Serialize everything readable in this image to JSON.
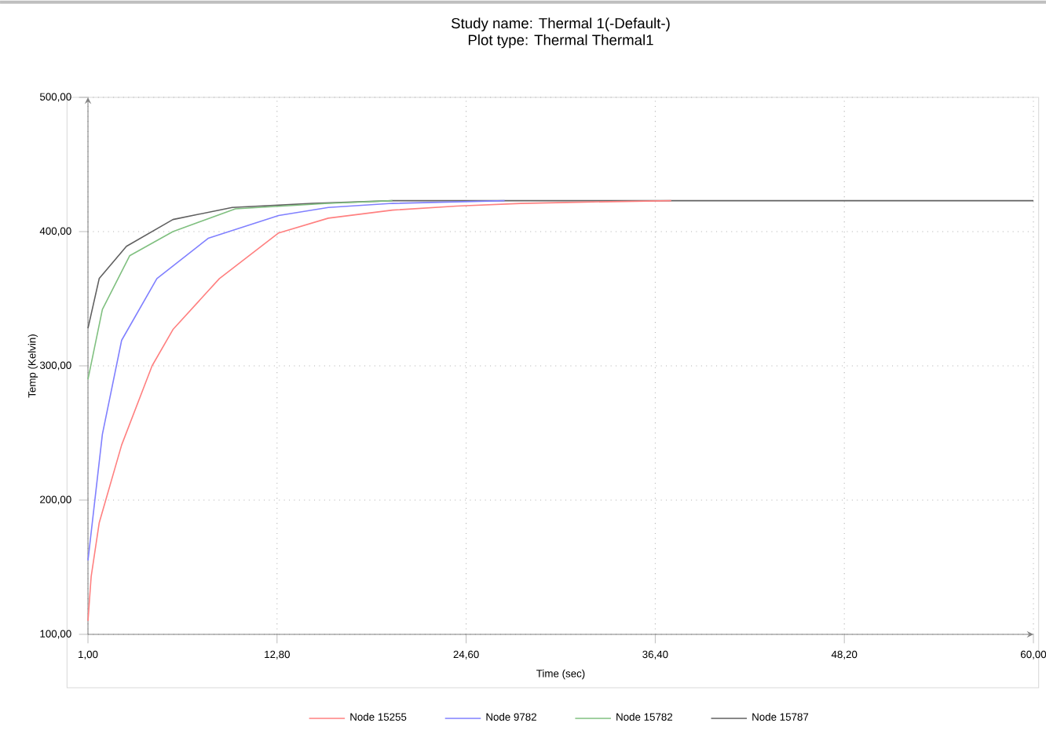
{
  "chart_data": {
    "type": "line",
    "title": "Study name: Thermal 1(-Default-)",
    "subtitle": "Plot type: Thermal Thermal1",
    "xlabel": "Time (sec)",
    "ylabel": "Temp (Kelvin)",
    "xlim": [
      1,
      60
    ],
    "ylim": [
      100,
      500
    ],
    "xticks": [
      {
        "value": 1,
        "label": "1,00"
      },
      {
        "value": 12.8,
        "label": "12,80"
      },
      {
        "value": 24.6,
        "label": "24,60"
      },
      {
        "value": 36.4,
        "label": "36,40"
      },
      {
        "value": 48.2,
        "label": "48,20"
      },
      {
        "value": 60,
        "label": "60,00"
      }
    ],
    "yticks": [
      {
        "value": 100,
        "label": "100,00"
      },
      {
        "value": 200,
        "label": "200,00"
      },
      {
        "value": 300,
        "label": "300,00"
      },
      {
        "value": 400,
        "label": "400,00"
      },
      {
        "value": 500,
        "label": "500,00"
      }
    ],
    "grid": true,
    "legend": "bottom",
    "marker": "none",
    "line_style": "solid",
    "series": [
      {
        "name": "Node 15255",
        "color": "#ff8080",
        "x": [
          1,
          1.2,
          1.7,
          3.1,
          5,
          6.3,
          9.2,
          12.9,
          16,
          20,
          24,
          28,
          32,
          37.4
        ],
        "values": [
          110,
          143,
          183,
          241,
          300,
          327,
          365,
          399,
          410,
          416,
          419,
          421,
          422,
          423
        ]
      },
      {
        "name": "Node 9782",
        "color": "#8080ff",
        "x": [
          1,
          1.9,
          3.1,
          5.3,
          8.5,
          12.9,
          16,
          20,
          27
        ],
        "values": [
          155,
          249,
          319,
          365,
          395,
          412,
          418,
          421,
          423
        ]
      },
      {
        "name": "Node 15782",
        "color": "#80c080",
        "x": [
          1,
          1.9,
          3.6,
          6.3,
          10.2,
          16,
          20
        ],
        "values": [
          290,
          342,
          382,
          400,
          417,
          421,
          423
        ]
      },
      {
        "name": "Node 15787",
        "color": "#606060",
        "x": [
          1,
          1.7,
          3.4,
          6.3,
          10,
          15,
          20,
          30,
          60
        ],
        "values": [
          328,
          365,
          389,
          409,
          418,
          421,
          423,
          423,
          423
        ]
      }
    ]
  }
}
